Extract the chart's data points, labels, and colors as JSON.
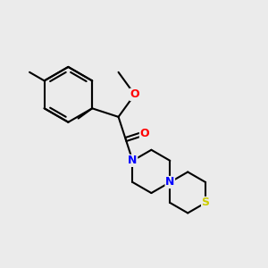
{
  "background_color": "#ebebeb",
  "bond_color": "#000000",
  "bond_width": 1.5,
  "atom_colors": {
    "O": "#ff0000",
    "N": "#0000ff",
    "S": "#cccc00"
  },
  "font_size": 9,
  "fig_width": 3.0,
  "fig_height": 3.0,
  "dpi": 100
}
